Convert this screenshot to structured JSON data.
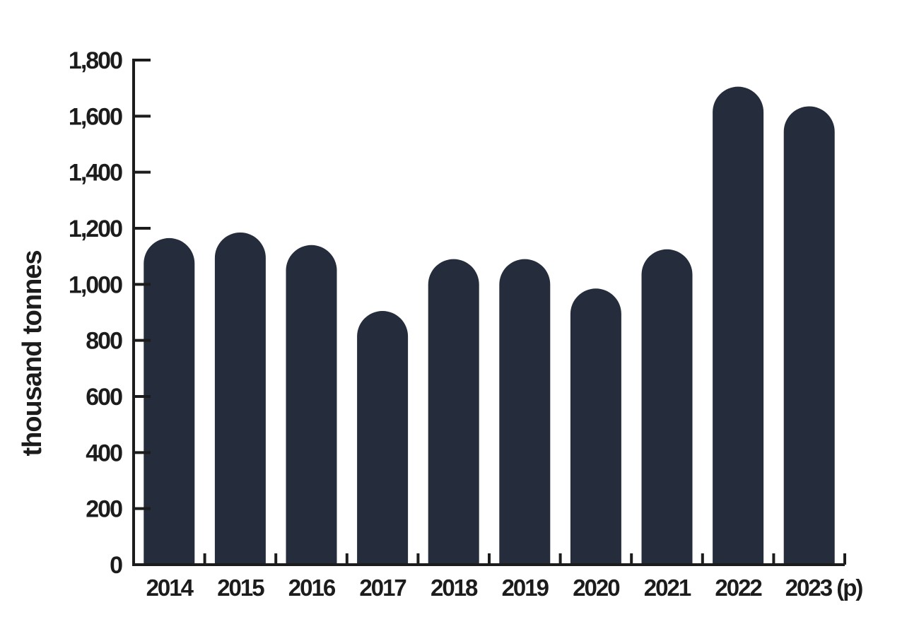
{
  "chart_data": {
    "type": "bar",
    "title": "",
    "xlabel": "",
    "ylabel": "thousand tonnes",
    "categories": [
      "2014",
      "2015",
      "2016",
      "2017",
      "2018",
      "2019",
      "2020",
      "2021",
      "2022",
      "2023 (p)"
    ],
    "values": [
      1165,
      1185,
      1140,
      905,
      1090,
      1090,
      985,
      1125,
      1705,
      1635
    ],
    "ylim": [
      0,
      1800
    ],
    "yticks": [
      0,
      200,
      400,
      600,
      800,
      1000,
      1200,
      1400,
      1600,
      1800
    ],
    "ytick_labels": [
      "0",
      "200",
      "400",
      "600",
      "800",
      "1,000",
      "1,200",
      "1,400",
      "1,600",
      "1,800"
    ],
    "grid": false,
    "legend": "none",
    "bar_color": "#252d3c",
    "bar_shape": "rounded-top"
  }
}
